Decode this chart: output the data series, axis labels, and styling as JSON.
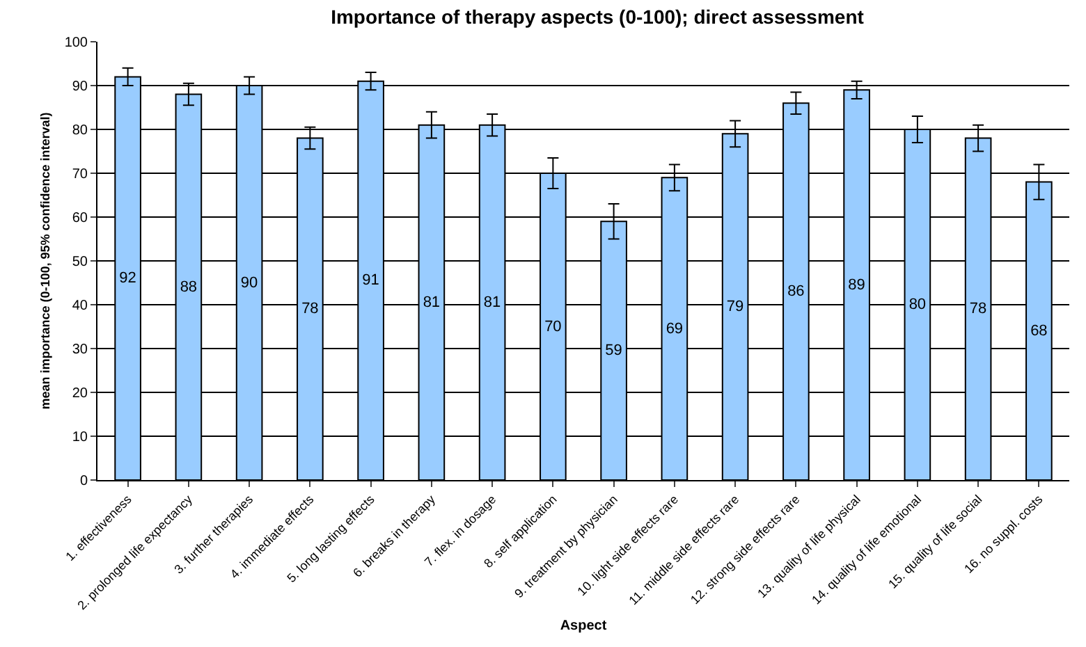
{
  "chart_data": {
    "type": "bar",
    "title": "Importance of therapy aspects (0-100); direct assessment",
    "xlabel": "Aspect",
    "ylabel": "mean importance (0-100, 95% confidence interval)",
    "categories": [
      "1. effectiveness",
      "2. prolonged life expectancy",
      "3. further therapies",
      "4. immediate effects",
      "5. long lasting effects",
      "6. breaks in therapy",
      "7. flex. in dosage",
      "8. self application",
      "9. treatment by physician",
      "10. light side effects rare",
      "11. middle side effects rare",
      "12. strong side effects rare",
      "13. quality of life physical",
      "14. quality of life emotional",
      "15. quality of life social",
      "16. no suppl. costs"
    ],
    "values": [
      92,
      88,
      90,
      78,
      91,
      81,
      81,
      70,
      59,
      69,
      79,
      86,
      89,
      80,
      78,
      68
    ],
    "errors": [
      2,
      2.5,
      2,
      2.5,
      2,
      3,
      2.5,
      3.5,
      4,
      3,
      3,
      2.5,
      2,
      3,
      3,
      4
    ],
    "color": "#99ccff",
    "data_labels": true,
    "ylim": [
      0,
      100
    ],
    "yticks": [
      0,
      10,
      20,
      30,
      40,
      50,
      60,
      70,
      80,
      90,
      100
    ],
    "grid": "y"
  }
}
